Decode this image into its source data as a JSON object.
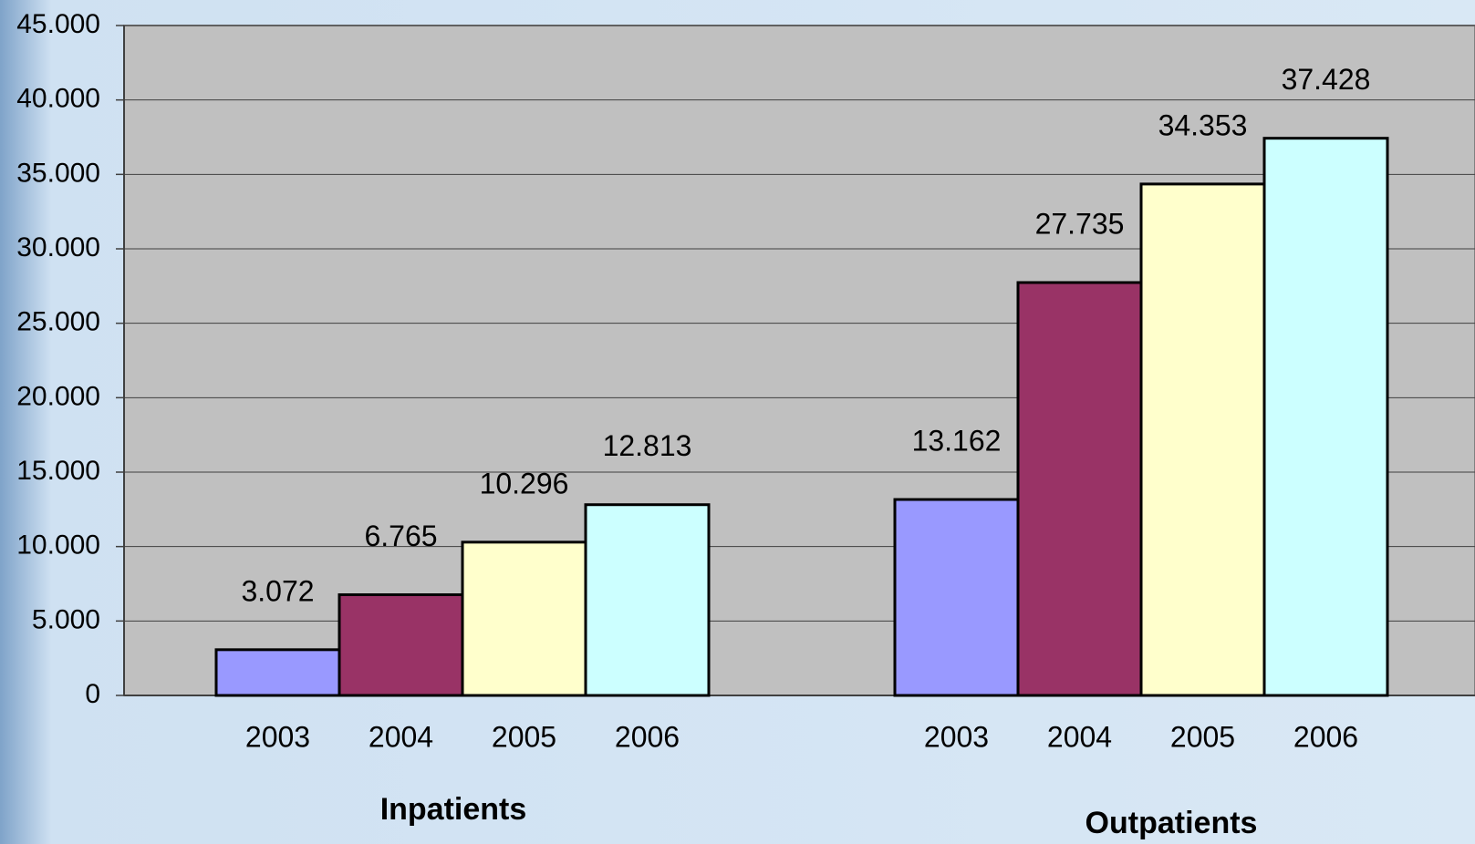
{
  "chart_data": {
    "type": "bar",
    "categories": [
      "Inpatients",
      "Outpatients"
    ],
    "series": [
      {
        "name": "2003",
        "color": "#9999ff",
        "values": [
          3072,
          13162
        ],
        "value_labels": [
          "3.072",
          "13.162"
        ]
      },
      {
        "name": "2004",
        "color": "#993366",
        "values": [
          6765,
          27735
        ],
        "value_labels": [
          "6.765",
          "27.735"
        ]
      },
      {
        "name": "2005",
        "color": "#ffffcc",
        "values": [
          10296,
          34353
        ],
        "value_labels": [
          "10.296",
          "34.353"
        ]
      },
      {
        "name": "2006",
        "color": "#ccffff",
        "values": [
          12813,
          37428
        ],
        "value_labels": [
          "12.813",
          "37.428"
        ]
      }
    ],
    "ylim": [
      0,
      45000
    ],
    "yticks": [
      0,
      {
        "value": 5000,
        "label": "5.000"
      },
      {
        "value": 10000,
        "label": "10.000"
      },
      {
        "value": 15000,
        "label": "15.000"
      },
      {
        "value": 20000,
        "label": "20.000"
      },
      {
        "value": 25000,
        "label": "25.000"
      },
      {
        "value": 30000,
        "label": "30.000"
      },
      {
        "value": 35000,
        "label": "35.000"
      },
      {
        "value": 40000,
        "label": "40.000"
      },
      {
        "value": 45000,
        "label": "45.000"
      }
    ],
    "grid": true
  }
}
